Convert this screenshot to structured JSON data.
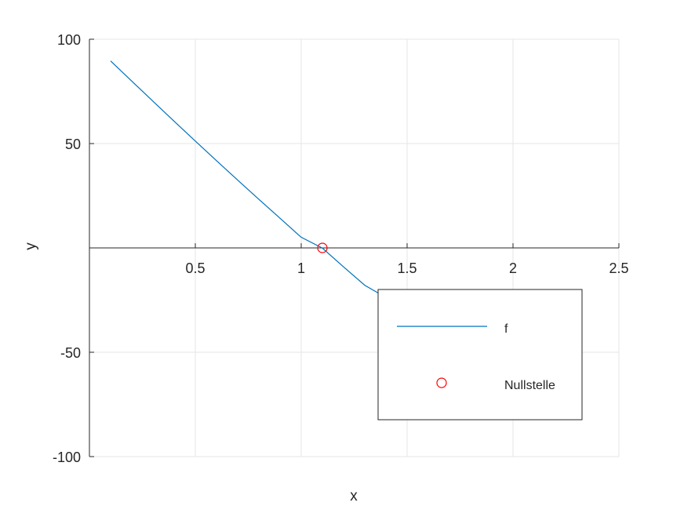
{
  "chart_data": {
    "type": "line",
    "xlabel": "x",
    "ylabel": "y",
    "xlim": [
      0,
      2.5
    ],
    "ylim": [
      -100,
      100
    ],
    "x_ticks": [
      0.5,
      1,
      1.5,
      2,
      2.5
    ],
    "x_tick_labels": [
      "0.5",
      "1",
      "1.5",
      "2",
      "2.5"
    ],
    "y_ticks": [
      -100,
      -50,
      50,
      100
    ],
    "y_tick_labels": [
      "-100",
      "-50",
      "50",
      "100"
    ],
    "grid": true,
    "axis_location": "origin",
    "legend_position": "bottom-right",
    "series": [
      {
        "name": "f",
        "style": "line",
        "color": "#0072bd",
        "x": [
          0.1,
          0.2,
          0.3,
          0.4,
          0.5,
          0.6,
          0.7,
          0.8,
          0.9,
          1.0,
          1.1,
          1.2,
          1.3,
          1.37
        ],
        "y": [
          89.6,
          79.9,
          70.3,
          60.7,
          51.2,
          41.8,
          32.5,
          23.3,
          14.2,
          5.1,
          -0.1,
          -9.1,
          -17.9,
          -22.0
        ]
      },
      {
        "name": "Nullstelle",
        "style": "marker",
        "marker": "circle",
        "color": "#ff0000",
        "x": [
          1.1
        ],
        "y": [
          0
        ]
      }
    ]
  }
}
